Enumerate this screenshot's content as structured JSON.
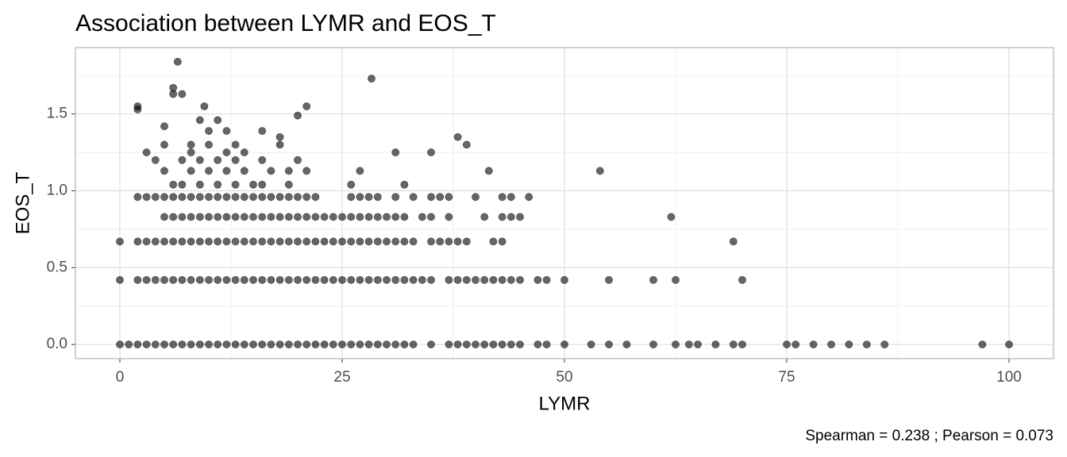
{
  "chart_data": {
    "type": "scatter",
    "title": "Association between LYMR and EOS_T",
    "x_label": "LYMR",
    "y_label": "EOS_T",
    "caption": "Spearman = 0.238 ; Pearson = 0.073",
    "color": "#000000",
    "alpha": 0.6,
    "grid": true,
    "xlim": [
      -5,
      105
    ],
    "ylim": [
      -0.092,
      1.932
    ],
    "xticks": [
      0,
      25,
      50,
      75,
      100
    ],
    "yticks": [
      {
        "value": 0,
        "label": "0.0"
      },
      0.5,
      {
        "value": 1,
        "label": "1.0"
      },
      1.5
    ],
    "x_minor_ticks": [
      12.5,
      37.5,
      62.5,
      87.5
    ],
    "y_minor_ticks": [
      0.25,
      0.75,
      1.25,
      1.75
    ],
    "x": [
      0,
      1,
      2,
      3,
      4,
      5,
      6,
      7,
      8,
      9,
      10,
      11,
      12,
      13,
      14,
      15,
      16,
      17,
      18,
      19,
      20,
      21,
      22,
      23,
      24,
      25,
      26,
      27,
      28,
      29,
      30,
      31,
      32,
      33,
      35,
      37,
      38,
      39,
      40,
      41,
      42,
      43,
      44,
      45,
      47,
      48,
      50,
      53,
      55,
      57,
      60,
      62.5,
      64,
      65,
      67,
      69,
      70,
      75,
      76,
      78,
      80,
      82,
      84,
      86,
      97,
      100,
      0,
      2,
      3,
      4,
      5,
      6,
      7,
      8,
      9,
      10,
      11,
      12,
      13,
      14,
      15,
      16,
      17,
      18,
      19,
      20,
      21,
      22,
      23,
      24,
      25,
      26,
      27,
      28,
      29,
      30,
      31,
      32,
      33,
      34,
      35,
      37,
      38,
      39,
      40,
      41,
      42,
      43,
      44,
      45,
      47,
      48,
      50,
      55,
      60,
      62.5,
      70,
      0,
      2,
      3,
      4,
      5,
      6,
      7,
      8,
      9,
      10,
      11,
      12,
      13,
      14,
      15,
      16,
      17,
      18,
      19,
      20,
      21,
      22,
      23,
      24,
      25,
      26,
      27,
      28,
      29,
      30,
      31,
      32,
      33,
      35,
      36,
      37,
      38,
      39,
      42,
      43,
      69,
      5,
      6,
      7,
      8,
      9,
      10,
      11,
      12,
      13,
      14,
      15,
      16,
      17,
      18,
      19,
      20,
      21,
      22,
      23,
      24,
      25,
      26,
      27,
      28,
      29,
      30,
      31,
      32,
      34,
      35,
      37,
      41,
      43,
      44,
      45,
      62,
      2,
      3,
      4,
      5,
      6,
      7,
      8,
      9,
      10,
      11,
      12,
      13,
      14,
      15,
      16,
      17,
      18,
      19,
      20,
      21,
      22,
      26,
      27,
      28,
      29,
      31,
      33,
      35,
      36,
      37,
      40,
      43,
      44,
      46,
      6,
      7,
      9,
      11,
      13,
      15,
      16,
      19,
      26,
      32,
      5,
      8,
      10,
      12,
      14,
      17,
      19,
      21,
      27,
      41.5,
      54,
      4,
      7,
      9,
      11,
      13,
      16,
      20,
      3,
      8,
      12,
      14,
      31,
      35,
      5,
      8,
      10,
      13,
      18,
      39,
      38,
      18,
      10,
      12,
      16,
      11,
      9,
      20,
      5,
      2,
      2,
      9.5,
      21,
      6,
      7,
      6,
      6.5,
      28.3
    ],
    "values": [
      0,
      0,
      0,
      0,
      0,
      0,
      0,
      0,
      0,
      0,
      0,
      0,
      0,
      0,
      0,
      0,
      0,
      0,
      0,
      0,
      0,
      0,
      0,
      0,
      0,
      0,
      0,
      0,
      0,
      0,
      0,
      0,
      0,
      0,
      0,
      0,
      0,
      0,
      0,
      0,
      0,
      0,
      0,
      0,
      0,
      0,
      0,
      0,
      0,
      0,
      0,
      0,
      0,
      0,
      0,
      0,
      0,
      0,
      0,
      0,
      0,
      0,
      0,
      0,
      0,
      0,
      0.42,
      0.42,
      0.42,
      0.42,
      0.42,
      0.42,
      0.42,
      0.42,
      0.42,
      0.42,
      0.42,
      0.42,
      0.42,
      0.42,
      0.42,
      0.42,
      0.42,
      0.42,
      0.42,
      0.42,
      0.42,
      0.42,
      0.42,
      0.42,
      0.42,
      0.42,
      0.42,
      0.42,
      0.42,
      0.42,
      0.42,
      0.42,
      0.42,
      0.42,
      0.42,
      0.42,
      0.42,
      0.42,
      0.42,
      0.42,
      0.42,
      0.42,
      0.42,
      0.42,
      0.42,
      0.42,
      0.42,
      0.42,
      0.42,
      0.42,
      0.42,
      0.67,
      0.67,
      0.67,
      0.67,
      0.67,
      0.67,
      0.67,
      0.67,
      0.67,
      0.67,
      0.67,
      0.67,
      0.67,
      0.67,
      0.67,
      0.67,
      0.67,
      0.67,
      0.67,
      0.67,
      0.67,
      0.67,
      0.67,
      0.67,
      0.67,
      0.67,
      0.67,
      0.67,
      0.67,
      0.67,
      0.67,
      0.67,
      0.67,
      0.67,
      0.67,
      0.67,
      0.67,
      0.67,
      0.67,
      0.67,
      0.67,
      0.83,
      0.83,
      0.83,
      0.83,
      0.83,
      0.83,
      0.83,
      0.83,
      0.83,
      0.83,
      0.83,
      0.83,
      0.83,
      0.83,
      0.83,
      0.83,
      0.83,
      0.83,
      0.83,
      0.83,
      0.83,
      0.83,
      0.83,
      0.83,
      0.83,
      0.83,
      0.83,
      0.83,
      0.83,
      0.83,
      0.83,
      0.83,
      0.83,
      0.83,
      0.83,
      0.83,
      0.96,
      0.96,
      0.96,
      0.96,
      0.96,
      0.96,
      0.96,
      0.96,
      0.96,
      0.96,
      0.96,
      0.96,
      0.96,
      0.96,
      0.96,
      0.96,
      0.96,
      0.96,
      0.96,
      0.96,
      0.96,
      0.96,
      0.96,
      0.96,
      0.96,
      0.96,
      0.96,
      0.96,
      0.96,
      0.96,
      0.96,
      0.96,
      0.96,
      0.96,
      1.04,
      1.04,
      1.04,
      1.04,
      1.04,
      1.04,
      1.04,
      1.04,
      1.04,
      1.04,
      1.13,
      1.13,
      1.13,
      1.13,
      1.13,
      1.13,
      1.13,
      1.13,
      1.13,
      1.13,
      1.13,
      1.2,
      1.2,
      1.2,
      1.2,
      1.2,
      1.2,
      1.2,
      1.25,
      1.25,
      1.25,
      1.25,
      1.25,
      1.25,
      1.3,
      1.3,
      1.3,
      1.3,
      1.3,
      1.3,
      1.35,
      1.35,
      1.39,
      1.39,
      1.39,
      1.46,
      1.46,
      1.49,
      1.42,
      1.53,
      1.55,
      1.55,
      1.55,
      1.63,
      1.63,
      1.67,
      1.84,
      1.73
    ]
  }
}
